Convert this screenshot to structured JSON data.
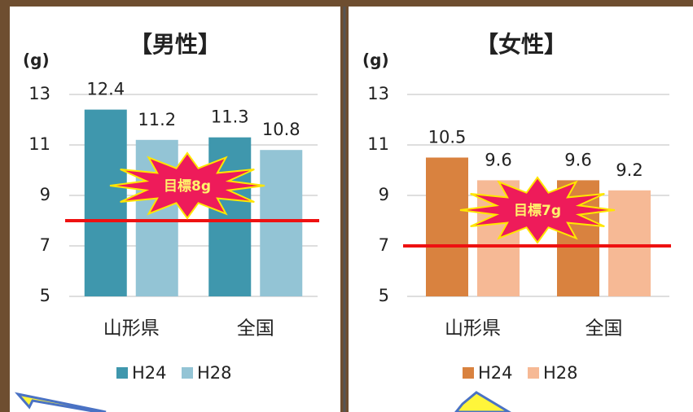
{
  "chart_data": [
    {
      "type": "bar",
      "title": "【男性】",
      "y_label": "(g)",
      "categories": [
        "山形県",
        "全国"
      ],
      "series": [
        {
          "name": "H24",
          "color": "#3f97ad",
          "values": [
            12.4,
            11.3
          ]
        },
        {
          "name": "H28",
          "color": "#93c4d5",
          "values": [
            11.2,
            10.8
          ]
        }
      ],
      "ylim": [
        5,
        13
      ],
      "yticks": [
        5,
        7,
        9,
        11,
        13
      ],
      "grid": true,
      "target_line": 8,
      "annotation": "目標8g"
    },
    {
      "type": "bar",
      "title": "【女性】",
      "y_label": "(g)",
      "categories": [
        "山形県",
        "全国"
      ],
      "series": [
        {
          "name": "H24",
          "color": "#d9823f",
          "values": [
            10.5,
            9.6
          ]
        },
        {
          "name": "H28",
          "color": "#f6b995",
          "values": [
            9.6,
            9.2
          ]
        }
      ],
      "ylim": [
        5,
        13
      ],
      "yticks": [
        5,
        7,
        9,
        11,
        13
      ],
      "grid": true,
      "target_line": 7,
      "annotation": "目標7g"
    }
  ]
}
